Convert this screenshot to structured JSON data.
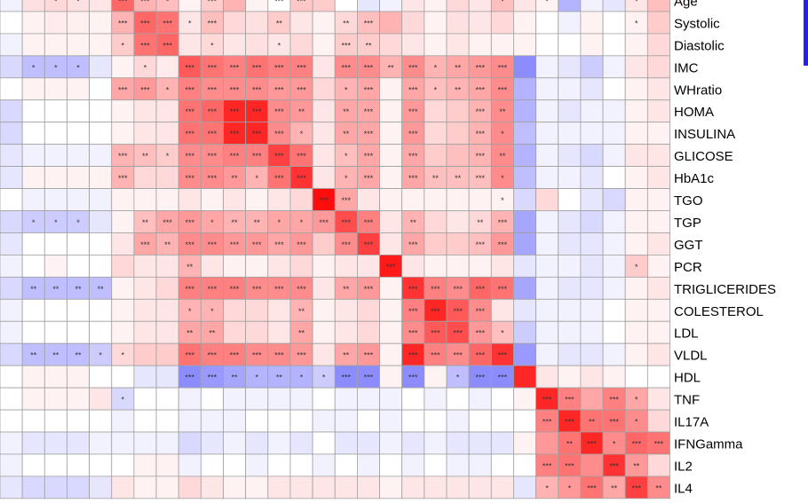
{
  "chart_data": {
    "type": "heatmap",
    "color_scale": {
      "negative": "#0000ff",
      "neutral": "#ffffff",
      "positive": "#ff0000",
      "range": [
        -1,
        1
      ]
    },
    "grid_color": "#a0a0a0",
    "n_columns": 30,
    "row_labels": [
      "Age",
      "Systolic",
      "Diastolic",
      "IMC",
      "WHratio",
      "HOMA",
      "INSULINA",
      "GLICOSE",
      "HbA1c",
      "TGO",
      "TGP",
      "GGT",
      "PCR",
      "TRIGLICERIDES",
      "COLESTEROL",
      "LDL",
      "VLDL",
      "HDL",
      "TNF",
      "IL17A",
      "IFNGamma",
      "IL2",
      "IL4"
    ],
    "values": [
      [
        -0.05,
        0.12,
        0.15,
        0.12,
        0.1,
        0.6,
        0.3,
        0.25,
        0.05,
        0.2,
        0.3,
        0.05,
        0.0,
        0.22,
        0.2,
        0.0,
        -0.1,
        -0.05,
        0.1,
        0.05,
        0.15,
        0.1,
        0.25,
        0.1,
        0.05,
        -0.3,
        -0.05,
        -0.1,
        0.1,
        0.25
      ],
      [
        0.0,
        0.05,
        0.08,
        0.06,
        0.05,
        0.3,
        0.6,
        0.55,
        0.1,
        0.25,
        0.15,
        0.12,
        0.2,
        0.1,
        0.05,
        0.15,
        0.25,
        0.3,
        0.15,
        0.05,
        0.12,
        0.1,
        0.15,
        0.05,
        0.0,
        -0.05,
        0.05,
        0.0,
        0.05,
        0.2
      ],
      [
        -0.05,
        0.05,
        0.05,
        0.05,
        0.05,
        0.2,
        0.55,
        0.6,
        0.1,
        0.15,
        0.1,
        0.12,
        0.1,
        0.15,
        0.05,
        0.2,
        0.2,
        0.15,
        0.1,
        0.05,
        0.1,
        0.05,
        0.05,
        0.05,
        0.0,
        0.0,
        0.05,
        0.0,
        0.05,
        0.15
      ],
      [
        -0.15,
        -0.25,
        -0.25,
        -0.25,
        -0.1,
        0.05,
        0.15,
        0.08,
        0.65,
        0.55,
        0.5,
        0.55,
        0.5,
        0.5,
        0.1,
        0.45,
        0.45,
        0.3,
        0.45,
        0.3,
        0.35,
        0.4,
        0.45,
        -0.45,
        -0.05,
        -0.1,
        -0.2,
        -0.05,
        0.1,
        0.15
      ],
      [
        0.0,
        0.05,
        0.05,
        0.05,
        0.0,
        0.35,
        0.4,
        0.3,
        0.5,
        0.45,
        0.45,
        0.45,
        0.4,
        0.4,
        0.15,
        0.3,
        0.35,
        0.05,
        0.35,
        0.25,
        0.3,
        0.35,
        0.45,
        -0.3,
        -0.05,
        -0.05,
        -0.1,
        0.0,
        0.05,
        0.1
      ],
      [
        -0.15,
        0.0,
        0.0,
        0.0,
        0.0,
        0.05,
        0.1,
        0.1,
        0.55,
        0.6,
        0.85,
        0.85,
        0.45,
        0.4,
        0.1,
        0.35,
        0.35,
        0.05,
        0.4,
        0.15,
        0.2,
        0.3,
        0.45,
        -0.3,
        -0.05,
        -0.1,
        -0.05,
        -0.05,
        0.05,
        0.1
      ],
      [
        -0.15,
        0.0,
        0.0,
        0.0,
        0.0,
        0.05,
        0.1,
        0.1,
        0.55,
        0.55,
        0.85,
        0.85,
        0.45,
        0.3,
        0.1,
        0.35,
        0.35,
        0.05,
        0.4,
        0.15,
        0.2,
        0.3,
        0.45,
        -0.25,
        -0.05,
        -0.05,
        -0.05,
        -0.05,
        0.05,
        0.05
      ],
      [
        -0.1,
        -0.05,
        -0.05,
        -0.05,
        -0.05,
        0.3,
        0.25,
        0.2,
        0.45,
        0.45,
        0.5,
        0.5,
        0.75,
        0.55,
        0.1,
        0.25,
        0.35,
        0.05,
        0.35,
        0.2,
        0.25,
        0.3,
        0.45,
        -0.3,
        -0.05,
        -0.1,
        -0.15,
        -0.05,
        0.1,
        0.1
      ],
      [
        -0.1,
        0.05,
        0.05,
        0.05,
        0.05,
        0.3,
        0.15,
        0.15,
        0.45,
        0.45,
        0.4,
        0.3,
        0.55,
        0.8,
        0.1,
        0.3,
        0.35,
        0.05,
        0.35,
        0.25,
        0.25,
        0.25,
        0.45,
        -0.25,
        -0.05,
        -0.05,
        -0.1,
        0.0,
        0.05,
        0.1
      ],
      [
        0.0,
        -0.05,
        -0.05,
        -0.05,
        -0.05,
        0.05,
        0.05,
        0.05,
        0.1,
        0.05,
        0.1,
        0.05,
        0.1,
        0.15,
        0.95,
        0.35,
        0.1,
        0.05,
        0.05,
        0.05,
        0.05,
        0.05,
        0.05,
        -0.15,
        0.15,
        0.0,
        -0.1,
        -0.15,
        0.05,
        0.05
      ],
      [
        -0.15,
        -0.2,
        -0.2,
        -0.2,
        -0.1,
        0.05,
        0.25,
        0.35,
        0.4,
        0.35,
        0.3,
        0.3,
        0.35,
        0.35,
        0.4,
        0.7,
        0.5,
        0.1,
        0.3,
        0.15,
        0.1,
        0.15,
        0.3,
        -0.35,
        -0.05,
        -0.1,
        -0.15,
        -0.05,
        0.05,
        0.05
      ],
      [
        -0.1,
        0.0,
        0.0,
        0.0,
        0.0,
        0.1,
        0.35,
        0.3,
        0.45,
        0.45,
        0.4,
        0.4,
        0.35,
        0.4,
        0.2,
        0.45,
        0.75,
        0.1,
        0.35,
        0.2,
        0.2,
        0.25,
        0.4,
        -0.35,
        -0.05,
        -0.1,
        -0.1,
        -0.05,
        0.05,
        0.1
      ],
      [
        -0.05,
        0.0,
        0.05,
        0.0,
        0.0,
        0.15,
        0.1,
        0.1,
        0.3,
        0.1,
        0.05,
        0.05,
        0.1,
        0.15,
        0.05,
        0.1,
        0.1,
        0.9,
        0.1,
        0.05,
        0.05,
        0.05,
        0.1,
        -0.1,
        -0.05,
        -0.05,
        -0.1,
        -0.05,
        0.2,
        0.05
      ],
      [
        -0.15,
        -0.25,
        -0.25,
        -0.25,
        -0.25,
        0.05,
        0.1,
        0.15,
        0.5,
        0.5,
        0.5,
        0.45,
        0.45,
        0.45,
        0.1,
        0.35,
        0.4,
        0.05,
        0.8,
        0.5,
        0.45,
        0.6,
        0.55,
        -0.35,
        -0.05,
        -0.1,
        -0.1,
        -0.05,
        0.05,
        0.1
      ],
      [
        -0.05,
        0.0,
        0.0,
        0.0,
        0.0,
        0.05,
        0.1,
        0.1,
        0.3,
        0.3,
        0.15,
        0.15,
        0.1,
        0.3,
        0.05,
        0.1,
        0.15,
        0.05,
        0.5,
        0.85,
        0.65,
        0.45,
        0.1,
        -0.1,
        -0.05,
        -0.05,
        -0.05,
        0.0,
        0.05,
        0.05
      ],
      [
        -0.05,
        0.0,
        0.0,
        0.0,
        0.0,
        0.05,
        0.1,
        0.1,
        0.35,
        0.35,
        0.15,
        0.15,
        0.1,
        0.35,
        0.05,
        0.1,
        0.15,
        0.05,
        0.45,
        0.65,
        0.7,
        0.4,
        0.25,
        -0.2,
        -0.05,
        -0.05,
        -0.05,
        0.0,
        0.05,
        0.05
      ],
      [
        -0.15,
        -0.25,
        -0.25,
        -0.25,
        -0.2,
        0.15,
        0.2,
        0.2,
        0.55,
        0.5,
        0.5,
        0.45,
        0.45,
        0.4,
        0.1,
        0.35,
        0.4,
        0.05,
        0.85,
        0.5,
        0.45,
        0.6,
        0.8,
        -0.4,
        -0.05,
        -0.1,
        -0.1,
        -0.05,
        0.05,
        0.1
      ],
      [
        0.0,
        0.05,
        0.05,
        0.05,
        0.0,
        0.0,
        -0.1,
        -0.1,
        -0.45,
        -0.4,
        -0.35,
        -0.3,
        -0.3,
        -0.3,
        -0.2,
        -0.45,
        -0.45,
        0.05,
        -0.45,
        0.05,
        -0.25,
        -0.45,
        -0.45,
        0.85,
        0.1,
        0.05,
        0.1,
        0.05,
        0.0,
        0.0
      ],
      [
        0.0,
        0.05,
        0.05,
        0.05,
        0.1,
        -0.15,
        0.0,
        0.0,
        -0.05,
        0.0,
        -0.05,
        -0.05,
        -0.05,
        -0.05,
        0.0,
        -0.05,
        -0.05,
        -0.05,
        0.0,
        -0.05,
        0.0,
        -0.05,
        0.0,
        0.05,
        0.85,
        0.5,
        0.35,
        0.5,
        0.35,
        0.1
      ],
      [
        0.0,
        0.0,
        0.0,
        0.0,
        0.0,
        -0.05,
        0.0,
        0.0,
        -0.05,
        -0.05,
        -0.05,
        0.0,
        0.0,
        0.0,
        -0.05,
        -0.05,
        0.0,
        -0.05,
        0.0,
        0.0,
        -0.05,
        0.0,
        0.0,
        0.0,
        0.5,
        0.85,
        0.55,
        0.55,
        0.45,
        0.15
      ],
      [
        -0.05,
        -0.1,
        -0.1,
        -0.1,
        -0.05,
        -0.05,
        -0.05,
        -0.05,
        -0.15,
        -0.1,
        -0.05,
        -0.1,
        -0.05,
        -0.1,
        0.0,
        -0.1,
        -0.1,
        -0.05,
        -0.1,
        -0.05,
        -0.1,
        -0.1,
        -0.1,
        0.05,
        0.4,
        0.55,
        0.85,
        0.45,
        0.6,
        0.55
      ],
      [
        -0.05,
        0.0,
        0.0,
        0.0,
        0.0,
        0.0,
        0.05,
        0.05,
        -0.05,
        0.0,
        0.0,
        -0.05,
        0.0,
        0.0,
        -0.05,
        0.0,
        -0.05,
        0.0,
        -0.05,
        0.0,
        -0.05,
        -0.05,
        0.0,
        0.0,
        0.5,
        0.55,
        0.45,
        0.8,
        0.4,
        0.15
      ],
      [
        -0.1,
        -0.15,
        -0.15,
        -0.15,
        -0.1,
        0.1,
        0.05,
        0.05,
        0.15,
        0.1,
        0.05,
        0.05,
        0.1,
        0.1,
        0.1,
        0.1,
        0.1,
        0.05,
        0.1,
        0.1,
        0.1,
        0.1,
        0.1,
        -0.1,
        0.3,
        0.4,
        0.55,
        0.35,
        0.75,
        0.45
      ]
    ],
    "annotations": [
      [
        "",
        "",
        "*",
        "*",
        "",
        "***",
        "***",
        "*",
        "",
        "***",
        "",
        "",
        "***",
        "***",
        "",
        "",
        "",
        "",
        "",
        "",
        "",
        "",
        "*",
        "",
        "*",
        "",
        "",
        "",
        "*",
        ""
      ],
      [
        "",
        "",
        "",
        "",
        "",
        "***",
        "***",
        "***",
        "*",
        "***",
        "",
        "",
        "**",
        "",
        "",
        "**",
        "***",
        "",
        "",
        "",
        "",
        "",
        "",
        "",
        "",
        "",
        "",
        "",
        "*",
        ""
      ],
      [
        "",
        "",
        "",
        "",
        "",
        "*",
        "***",
        "***",
        "",
        "*",
        "",
        "",
        "*",
        "",
        "",
        "***",
        "**",
        "",
        "",
        "",
        "",
        "",
        "",
        "",
        "",
        "",
        "",
        "",
        "",
        ""
      ],
      [
        "",
        "*",
        "*",
        "*",
        "",
        "",
        "*",
        "",
        "***",
        "***",
        "***",
        "***",
        "***",
        "***",
        "",
        "***",
        "***",
        "**",
        "***",
        "*",
        "**",
        "***",
        "***",
        "",
        "",
        "",
        "",
        "",
        "",
        ""
      ],
      [
        "",
        "",
        "",
        "",
        "",
        "***",
        "***",
        "*",
        "***",
        "***",
        "***",
        "***",
        "***",
        "***",
        "",
        "*",
        "***",
        "",
        "***",
        "*",
        "**",
        "***",
        "***",
        "",
        "",
        "",
        "",
        "",
        "",
        ""
      ],
      [
        "",
        "",
        "",
        "",
        "",
        "",
        "",
        "",
        "***",
        "***",
        "***",
        "***",
        "***",
        "**",
        "",
        "**",
        "***",
        "",
        "***",
        "",
        "",
        "***",
        "**",
        "",
        "",
        "",
        "",
        "",
        "",
        ""
      ],
      [
        "",
        "",
        "",
        "",
        "",
        "",
        "",
        "",
        "***",
        "***",
        "***",
        "***",
        "***",
        "*",
        "",
        "**",
        "***",
        "",
        "***",
        "",
        "",
        "***",
        "*",
        "",
        "",
        "",
        "",
        "",
        "",
        ""
      ],
      [
        "",
        "",
        "",
        "",
        "",
        "***",
        "**",
        "*",
        "***",
        "***",
        "***",
        "***",
        "***",
        "***",
        "",
        "*",
        "***",
        "",
        "***",
        "",
        "",
        "***",
        "**",
        "",
        "",
        "",
        "",
        "",
        "",
        ""
      ],
      [
        "",
        "",
        "",
        "",
        "",
        "***",
        "",
        "",
        "***",
        "***",
        "**",
        "*",
        "***",
        "***",
        "",
        "*",
        "***",
        "",
        "***",
        "**",
        "**",
        "***",
        "*",
        "",
        "",
        "",
        "",
        "",
        "",
        ""
      ],
      [
        "",
        "",
        "",
        "",
        "",
        "",
        "",
        "",
        "",
        "",
        "",
        "",
        "",
        "",
        "***",
        "***",
        "",
        "",
        "",
        "",
        "",
        "",
        "*",
        "",
        "",
        "",
        "",
        "",
        "",
        ""
      ],
      [
        "",
        "*",
        "*",
        "*",
        "",
        "",
        "**",
        "***",
        "***",
        "*",
        "**",
        "**",
        "*",
        "*",
        "***",
        "***",
        "***",
        "",
        "**",
        "",
        "",
        "**",
        "***",
        "",
        "",
        "",
        "",
        "",
        "",
        ""
      ],
      [
        "",
        "",
        "",
        "",
        "",
        "",
        "***",
        "**",
        "***",
        "***",
        "***",
        "***",
        "***",
        "***",
        "",
        "***",
        "***",
        "",
        "***",
        "",
        "",
        "***",
        "***",
        "",
        "",
        "",
        "",
        "",
        "",
        ""
      ],
      [
        "",
        "",
        "",
        "",
        "",
        "",
        "",
        "",
        "**",
        "",
        "",
        "",
        "",
        "",
        "",
        "",
        "",
        "***",
        "",
        "",
        "",
        "",
        "",
        "",
        "",
        "",
        "",
        "",
        "*",
        ""
      ],
      [
        "",
        "**",
        "**",
        "**",
        "**",
        "",
        "",
        "",
        "***",
        "***",
        "***",
        "***",
        "***",
        "***",
        "",
        "**",
        "***",
        "",
        "***",
        "***",
        "***",
        "***",
        "***",
        "",
        "",
        "",
        "",
        "",
        "",
        ""
      ],
      [
        "",
        "",
        "",
        "",
        "",
        "",
        "",
        "",
        "*",
        "*",
        "",
        "",
        "",
        "**",
        "",
        "",
        "",
        "",
        "***",
        "***",
        "***",
        "***",
        "",
        "",
        "",
        "",
        "",
        "",
        "",
        ""
      ],
      [
        "",
        "",
        "",
        "",
        "",
        "",
        "",
        "",
        "**",
        "**",
        "",
        "",
        "",
        "**",
        "",
        "",
        "",
        "",
        "***",
        "***",
        "***",
        "***",
        "*",
        "",
        "",
        "",
        "",
        "",
        "",
        ""
      ],
      [
        "",
        "**",
        "**",
        "**",
        "*",
        "*",
        "",
        "",
        "***",
        "***",
        "***",
        "***",
        "***",
        "***",
        "",
        "**",
        "***",
        "",
        "***",
        "***",
        "***",
        "***",
        "***",
        "",
        "",
        "",
        "",
        "",
        "",
        ""
      ],
      [
        "",
        "",
        "",
        "",
        "",
        "",
        "",
        "",
        "***",
        "***",
        "**",
        "*",
        "**",
        "*",
        "*",
        "***",
        "***",
        "",
        "***",
        "",
        "*",
        "***",
        "***",
        "",
        "",
        "",
        "",
        "",
        "",
        ""
      ],
      [
        "",
        "",
        "",
        "",
        "",
        "*",
        "",
        "",
        "",
        "",
        "",
        "",
        "",
        "",
        "",
        "",
        "",
        "",
        "",
        "",
        "",
        "",
        "",
        "",
        "***",
        "***",
        "",
        "***",
        "*",
        ""
      ],
      [
        "",
        "",
        "",
        "",
        "",
        "",
        "",
        "",
        "",
        "",
        "",
        "",
        "",
        "",
        "",
        "",
        "",
        "",
        "",
        "",
        "",
        "",
        "",
        "",
        "***",
        "***",
        "**",
        "***",
        "*",
        ""
      ],
      [
        "",
        "",
        "",
        "",
        "",
        "",
        "",
        "",
        "",
        "",
        "",
        "",
        "",
        "",
        "",
        "",
        "",
        "",
        "",
        "",
        "",
        "",
        "",
        "",
        "",
        "**",
        "***",
        "*",
        "***",
        "***"
      ],
      [
        "",
        "",
        "",
        "",
        "",
        "",
        "",
        "",
        "",
        "",
        "",
        "",
        "",
        "",
        "",
        "",
        "",
        "",
        "",
        "",
        "",
        "",
        "",
        "",
        "***",
        "***",
        "",
        "***",
        "**",
        ""
      ],
      [
        "",
        "",
        "",
        "",
        "",
        "",
        "",
        "",
        "",
        "",
        "",
        "",
        "",
        "",
        "",
        "",
        "",
        "",
        "",
        "",
        "",
        "",
        "",
        "",
        "*",
        "*",
        "***",
        "**",
        "***",
        "**"
      ]
    ]
  }
}
